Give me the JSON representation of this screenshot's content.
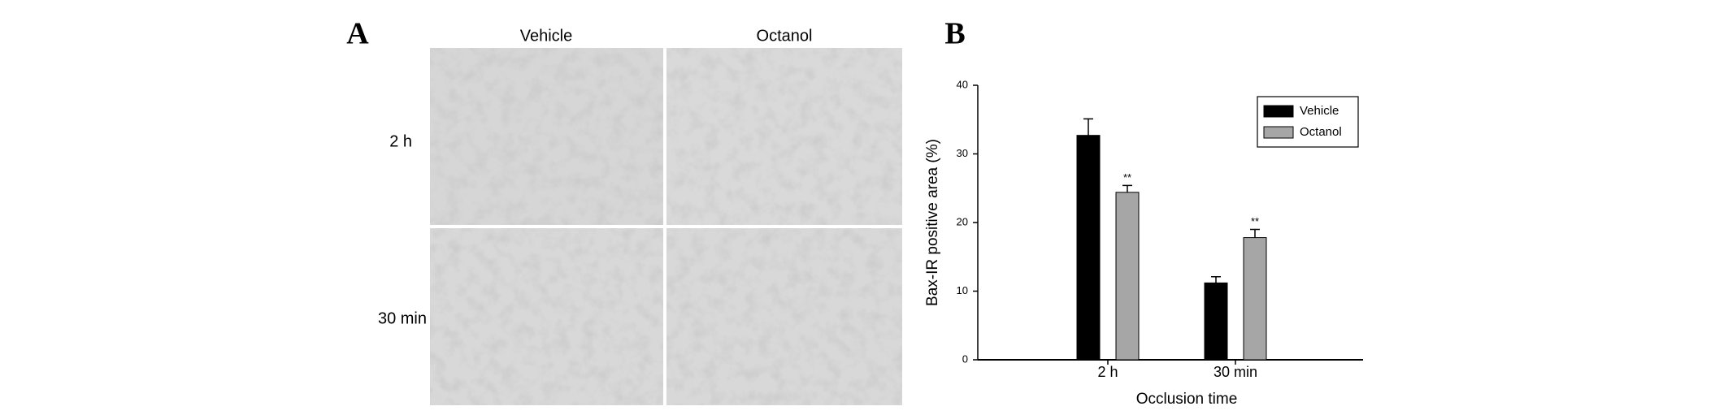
{
  "figure": {
    "panel_a": {
      "label": "A",
      "columns": [
        "Vehicle",
        "Octanol"
      ],
      "rows": [
        "2 h",
        "30 min"
      ]
    },
    "panel_b_label": "B"
  },
  "chart_data": {
    "type": "bar",
    "xlabel": "Occlusion time",
    "ylabel": "Bax-IR positive area (%)",
    "categories": [
      "2 h",
      "30 min"
    ],
    "series": [
      {
        "name": "Vehicle",
        "color": "#000000",
        "values": [
          32.7,
          11.2
        ],
        "errors": [
          2.4,
          0.9
        ]
      },
      {
        "name": "Octanol",
        "color": "#a6a6a6",
        "values": [
          24.4,
          17.8
        ],
        "errors": [
          1.0,
          1.2
        ],
        "annotations": [
          "**",
          "**"
        ]
      }
    ],
    "ylim": [
      0,
      40
    ],
    "yticks": [
      0,
      10,
      20,
      30,
      40
    ],
    "legend": "upper right"
  }
}
